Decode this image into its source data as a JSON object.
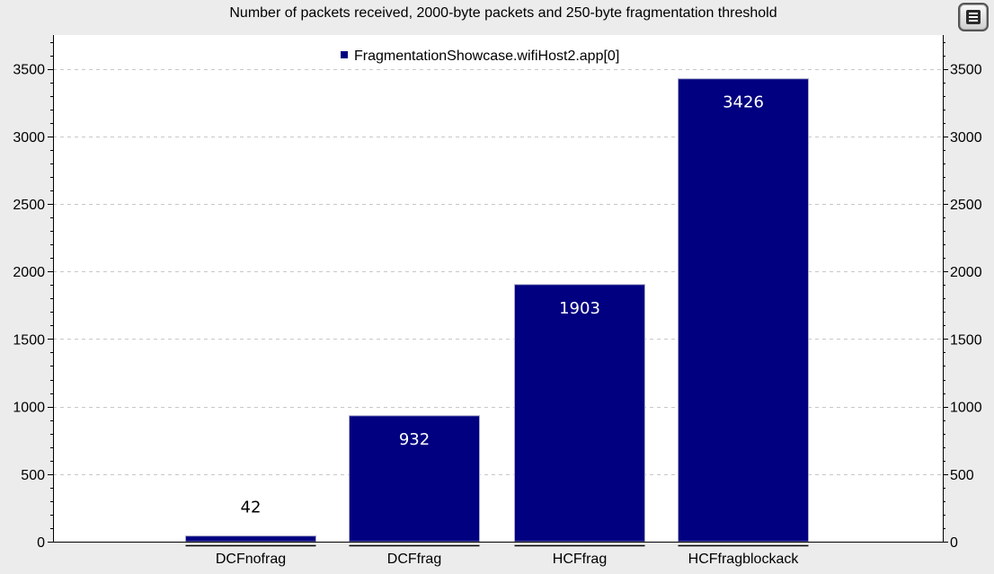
{
  "chart_data": {
    "type": "bar",
    "title": "Number of packets received, 2000-byte packets and 250-byte fragmentation threshold",
    "categories": [
      "DCFnofrag",
      "DCFfrag",
      "HCFfrag",
      "HCFfragblockack"
    ],
    "series": [
      {
        "name": "FragmentationShowcase.wifiHost2.app[0]",
        "values": [
          42,
          932,
          1903,
          3426
        ],
        "color": "#000080"
      }
    ],
    "xlabel": "",
    "ylabel": "",
    "ylim": [
      0,
      3750
    ],
    "yticks": [
      0,
      500,
      1000,
      1500,
      2000,
      2500,
      3000,
      3500
    ],
    "grid": "horizontal-dashed",
    "legend": "top-center",
    "data_labels": [
      "42",
      "932",
      "1903",
      "3426"
    ]
  },
  "legend_button_icon": "legend-list-icon"
}
